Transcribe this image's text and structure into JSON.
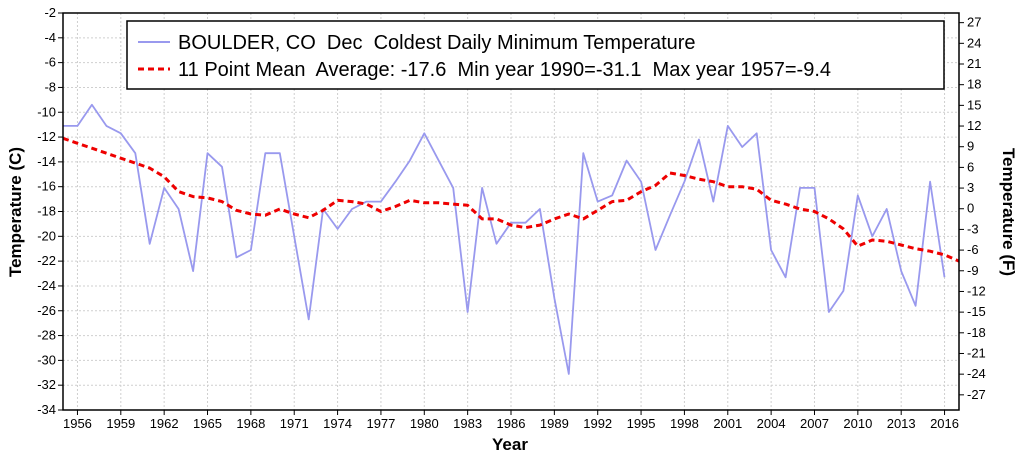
{
  "chart_data": {
    "type": "line",
    "xlabel": "Year",
    "ylabel_left": "Temperature (C)",
    "ylabel_right": "Temperature (F)",
    "xlim": [
      1955,
      2017
    ],
    "ylim": [
      -34,
      -2
    ],
    "ylim_f": [
      -29.2,
      28.4
    ],
    "x_ticks": [
      1956,
      1959,
      1962,
      1965,
      1968,
      1971,
      1974,
      1977,
      1980,
      1983,
      1986,
      1989,
      1992,
      1995,
      1998,
      2001,
      2004,
      2007,
      2010,
      2013,
      2016
    ],
    "y_ticks": [
      -34,
      -32,
      -30,
      -28,
      -26,
      -24,
      -22,
      -20,
      -18,
      -16,
      -14,
      -12,
      -10,
      -8,
      -6,
      -4,
      -2
    ],
    "y_ticks_f": [
      -27,
      -24,
      -21,
      -18,
      -15,
      -12,
      -9,
      -6,
      -3,
      0,
      3,
      6,
      9,
      12,
      15,
      18,
      21,
      24,
      27
    ],
    "grid": true,
    "legend_position": "top",
    "series": [
      {
        "name": "BOULDER, CO  Dec  Coldest Daily Minimum Temperature",
        "color": "#9999ee",
        "style": "solid",
        "x": [
          1955,
          1956,
          1957,
          1958,
          1959,
          1960,
          1961,
          1962,
          1963,
          1964,
          1965,
          1966,
          1967,
          1968,
          1969,
          1970,
          1971,
          1972,
          1973,
          1974,
          1975,
          1976,
          1977,
          1978,
          1979,
          1980,
          1981,
          1982,
          1983,
          1984,
          1985,
          1986,
          1987,
          1988,
          1989,
          1990,
          1991,
          1992,
          1993,
          1994,
          1995,
          1996,
          1997,
          1998,
          1999,
          2000,
          2001,
          2002,
          2003,
          2004,
          2005,
          2006,
          2007,
          2008,
          2009,
          2010,
          2011,
          2012,
          2013,
          2014,
          2015,
          2016
        ],
        "values": [
          -11.1,
          -11.1,
          -9.4,
          -11.1,
          -11.7,
          -13.3,
          -20.6,
          -16.1,
          -17.8,
          -22.8,
          -13.3,
          -14.4,
          -21.7,
          -21.1,
          -13.3,
          -13.3,
          -20.0,
          -26.7,
          -17.8,
          -19.4,
          -17.8,
          -17.2,
          -17.2,
          -15.6,
          -13.9,
          -11.7,
          -13.9,
          -16.1,
          -26.1,
          -16.1,
          -20.6,
          -18.9,
          -18.9,
          -17.8,
          -25.0,
          -31.1,
          -13.3,
          -17.2,
          -16.7,
          -13.9,
          -15.6,
          -21.1,
          -18.3,
          -15.6,
          -12.2,
          -17.2,
          -11.1,
          -12.8,
          -11.7,
          -21.1,
          -23.3,
          -16.1,
          -16.1,
          -26.1,
          -24.4,
          -16.7,
          -20.0,
          -17.8,
          -22.8,
          -25.6,
          -15.6,
          -23.3
        ]
      },
      {
        "name": "11 Point Mean  Average: -17.6  Min year 1990=-31.1  Max year 1957=-9.4",
        "color": "#ee0000",
        "style": "dashed",
        "x": [
          1955,
          1956,
          1957,
          1958,
          1959,
          1960,
          1961,
          1962,
          1963,
          1964,
          1965,
          1966,
          1967,
          1968,
          1969,
          1970,
          1971,
          1972,
          1973,
          1974,
          1975,
          1976,
          1977,
          1978,
          1979,
          1980,
          1981,
          1982,
          1983,
          1984,
          1985,
          1986,
          1987,
          1988,
          1989,
          1990,
          1991,
          1992,
          1993,
          1994,
          1995,
          1996,
          1997,
          1998,
          1999,
          2000,
          2001,
          2002,
          2003,
          2004,
          2005,
          2006,
          2007,
          2008,
          2009,
          2010,
          2011,
          2012,
          2013,
          2014,
          2015,
          2016,
          2017
        ],
        "values": [
          -12.1,
          -12.5,
          -12.9,
          -13.3,
          -13.7,
          -14.1,
          -14.5,
          -15.2,
          -16.4,
          -16.8,
          -16.9,
          -17.2,
          -17.9,
          -18.2,
          -18.3,
          -17.8,
          -18.2,
          -18.5,
          -17.9,
          -17.1,
          -17.2,
          -17.4,
          -18.0,
          -17.6,
          -17.1,
          -17.3,
          -17.3,
          -17.4,
          -17.5,
          -18.6,
          -18.6,
          -19.1,
          -19.3,
          -19.1,
          -18.6,
          -18.2,
          -18.6,
          -17.9,
          -17.2,
          -17.1,
          -16.4,
          -15.9,
          -14.9,
          -15.1,
          -15.4,
          -15.6,
          -16.0,
          -16.0,
          -16.2,
          -17.1,
          -17.4,
          -17.8,
          -18.0,
          -18.6,
          -19.4,
          -20.8,
          -20.3,
          -20.4,
          -20.7,
          -21.0,
          -21.2,
          -21.5,
          -22.0
        ]
      }
    ]
  }
}
